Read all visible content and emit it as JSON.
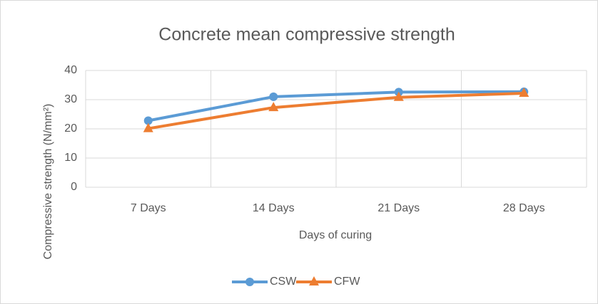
{
  "chart_data": {
    "type": "line",
    "title": "Concrete mean compressive strength",
    "x_label": "Days of curing",
    "y_label": "Compressive strength (N/mm²)",
    "categories": [
      "7 Days",
      "14 Days",
      "21 Days",
      "28 Days"
    ],
    "series": [
      {
        "name": "CSW",
        "color": "#5b9bd5",
        "marker": "circle",
        "values": [
          22.8,
          31,
          32.6,
          32.7
        ]
      },
      {
        "name": "CFW",
        "color": "#ed7d31",
        "marker": "triangle",
        "values": [
          20.1,
          27.3,
          30.8,
          32.2
        ]
      }
    ],
    "ylim": [
      0,
      40
    ],
    "yticks": [
      0,
      10,
      20,
      30,
      40
    ],
    "grid": true,
    "legend": "bottom"
  }
}
